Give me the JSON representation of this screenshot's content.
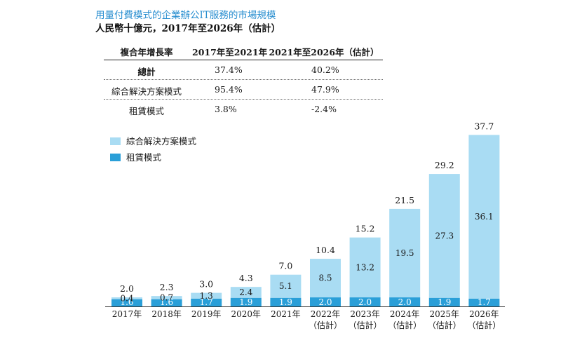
{
  "title": "用量付費模式的企業辦公IT服務的市場規模",
  "subtitle": "人民幣十億元，2017年至2026年（估計）",
  "table": {
    "headers": [
      "複合年增長率",
      "2017年至2021年",
      "2021年至2026年（估計）"
    ],
    "rows": [
      {
        "label": "總計",
        "v1": "37.4%",
        "v2": "40.2%"
      },
      {
        "label": "綜合解決方案模式",
        "v1": "95.4%",
        "v2": "47.9%"
      },
      {
        "label": "租賃模式",
        "v1": "3.8%",
        "v2": "-2.4%"
      }
    ]
  },
  "colors": {
    "solution": "#a9dcf3",
    "lease": "#2a9fd8",
    "title": "#2a8fd0"
  },
  "chart_data": {
    "type": "bar",
    "stacked": true,
    "categories": [
      "2017年",
      "2018年",
      "2019年",
      "2020年",
      "2021年",
      "2022年\n（估計）",
      "2023年\n（估計）",
      "2024年\n（估計）",
      "2025年\n（估計）",
      "2026年\n（估計）"
    ],
    "series": [
      {
        "name": "租賃模式",
        "values": [
          1.6,
          1.6,
          1.7,
          1.9,
          1.9,
          2.0,
          2.0,
          2.0,
          1.9,
          1.7
        ]
      },
      {
        "name": "綜合解決方案模式",
        "values": [
          0.4,
          0.7,
          1.3,
          2.4,
          5.1,
          8.5,
          13.2,
          19.5,
          27.3,
          36.1
        ]
      }
    ],
    "totals": [
      2.0,
      2.3,
      3.0,
      4.3,
      7.0,
      10.4,
      15.2,
      21.5,
      29.2,
      37.7
    ],
    "legend_position": "top-left",
    "grid": false
  }
}
